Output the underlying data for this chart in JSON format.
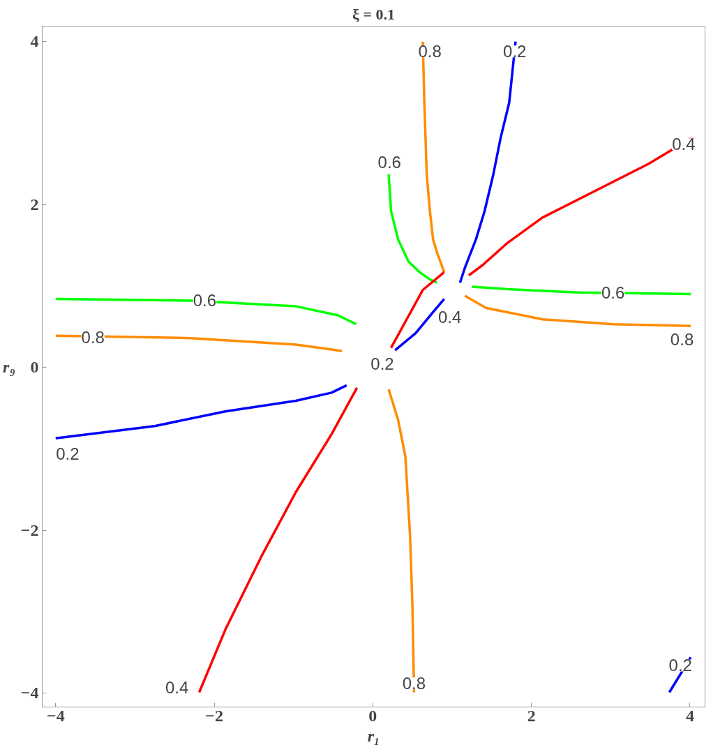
{
  "chart_data": {
    "type": "line",
    "title": "ξ = 0.1",
    "xlabel": "r₁",
    "ylabel": "r₉",
    "xlim": [
      -4.17,
      4.19
    ],
    "ylim": [
      -4.17,
      4.19
    ],
    "xticks": [
      -4,
      -2,
      0,
      2,
      4
    ],
    "yticks": [
      -4,
      -2,
      0,
      2,
      4
    ],
    "grid": false,
    "series": [
      {
        "color": "#ff8c00",
        "x": [
          0.63,
          0.65,
          0.68,
          0.72,
          0.76,
          0.81,
          0.9
        ],
        "values": [
          4.0,
          3.25,
          2.37,
          1.92,
          1.57,
          1.41,
          1.17
        ]
      },
      {
        "color": "#0000ff",
        "x": [
          1.8,
          1.72,
          1.61,
          1.52,
          1.41,
          1.3,
          1.16,
          1.1
        ],
        "values": [
          4.0,
          3.25,
          2.81,
          2.37,
          1.92,
          1.57,
          1.22,
          1.04
        ]
      },
      {
        "color": "#ff0000",
        "x": [
          4.01,
          3.48,
          2.85,
          2.14,
          1.7,
          1.39,
          1.21
        ],
        "values": [
          2.81,
          2.5,
          2.19,
          1.84,
          1.53,
          1.26,
          1.13
        ]
      },
      {
        "color": "#00ff00",
        "x": [
          0.2,
          0.23,
          0.32,
          0.45,
          0.59,
          0.72,
          0.81
        ],
        "values": [
          2.37,
          1.92,
          1.57,
          1.3,
          1.17,
          1.08,
          1.04
        ]
      },
      {
        "color": "#00ff00",
        "x": [
          1.25,
          1.7,
          2.59,
          4.01
        ],
        "values": [
          0.99,
          0.96,
          0.92,
          0.9
        ]
      },
      {
        "color": "#ff8c00",
        "x": [
          1.16,
          1.43,
          2.14,
          3.03,
          4.01
        ],
        "values": [
          0.88,
          0.73,
          0.59,
          0.53,
          0.51
        ]
      },
      {
        "color": "#ff0000",
        "x": [
          0.23,
          0.63,
          0.9
        ],
        "values": [
          0.24,
          0.95,
          1.17
        ]
      },
      {
        "color": "#0000ff",
        "x": [
          0.28,
          0.54,
          0.76,
          0.9
        ],
        "values": [
          0.21,
          0.42,
          0.68,
          0.84
        ]
      },
      {
        "color": "#00ff00",
        "x": [
          -4.0,
          -2.3,
          -0.97,
          -0.44,
          -0.21
        ],
        "values": [
          0.84,
          0.82,
          0.75,
          0.64,
          0.53
        ]
      },
      {
        "color": "#ff8c00",
        "x": [
          -4.0,
          -2.3,
          -0.97,
          -0.52,
          -0.39
        ],
        "values": [
          0.39,
          0.36,
          0.28,
          0.22,
          0.2
        ]
      },
      {
        "color": "#0000ff",
        "x": [
          -4.0,
          -2.75,
          -1.86,
          -0.97,
          -0.52,
          -0.33
        ],
        "values": [
          -0.87,
          -0.72,
          -0.54,
          -0.41,
          -0.31,
          -0.22
        ]
      },
      {
        "color": "#ff0000",
        "x": [
          -2.19,
          -1.86,
          -1.41,
          -0.97,
          -0.52,
          -0.2
        ],
        "values": [
          -3.99,
          -3.22,
          -2.33,
          -1.53,
          -0.82,
          -0.25
        ]
      },
      {
        "color": "#ff8c00",
        "x": [
          0.2,
          0.32,
          0.41,
          0.47,
          0.5,
          0.52
        ],
        "values": [
          -0.27,
          -0.65,
          -1.09,
          -2.07,
          -2.95,
          -3.99
        ]
      },
      {
        "color": "#0000ff",
        "x": [
          3.74,
          4.01
        ],
        "values": [
          -3.99,
          -3.56
        ]
      }
    ],
    "annotations": [
      {
        "text": "0.8",
        "x": 0.72,
        "y": 3.88
      },
      {
        "text": "0.2",
        "x": 1.79,
        "y": 3.88
      },
      {
        "text": "0.4",
        "x": 3.92,
        "y": 2.74
      },
      {
        "text": "0.6",
        "x": 0.21,
        "y": 2.52
      },
      {
        "text": "0.6",
        "x": 3.03,
        "y": 0.92
      },
      {
        "text": "0.8",
        "x": 3.9,
        "y": 0.34
      },
      {
        "text": "0.4",
        "x": 0.97,
        "y": 0.62
      },
      {
        "text": "0.2",
        "x": 0.12,
        "y": 0.04
      },
      {
        "text": "0.6",
        "x": -2.12,
        "y": 0.82
      },
      {
        "text": "0.8",
        "x": -3.53,
        "y": 0.37
      },
      {
        "text": "0.2",
        "x": -3.85,
        "y": -1.06
      },
      {
        "text": "0.4",
        "x": -2.47,
        "y": -3.93
      },
      {
        "text": "0.8",
        "x": 0.52,
        "y": -3.88
      },
      {
        "text": "0.2",
        "x": 3.88,
        "y": -3.66
      }
    ]
  }
}
